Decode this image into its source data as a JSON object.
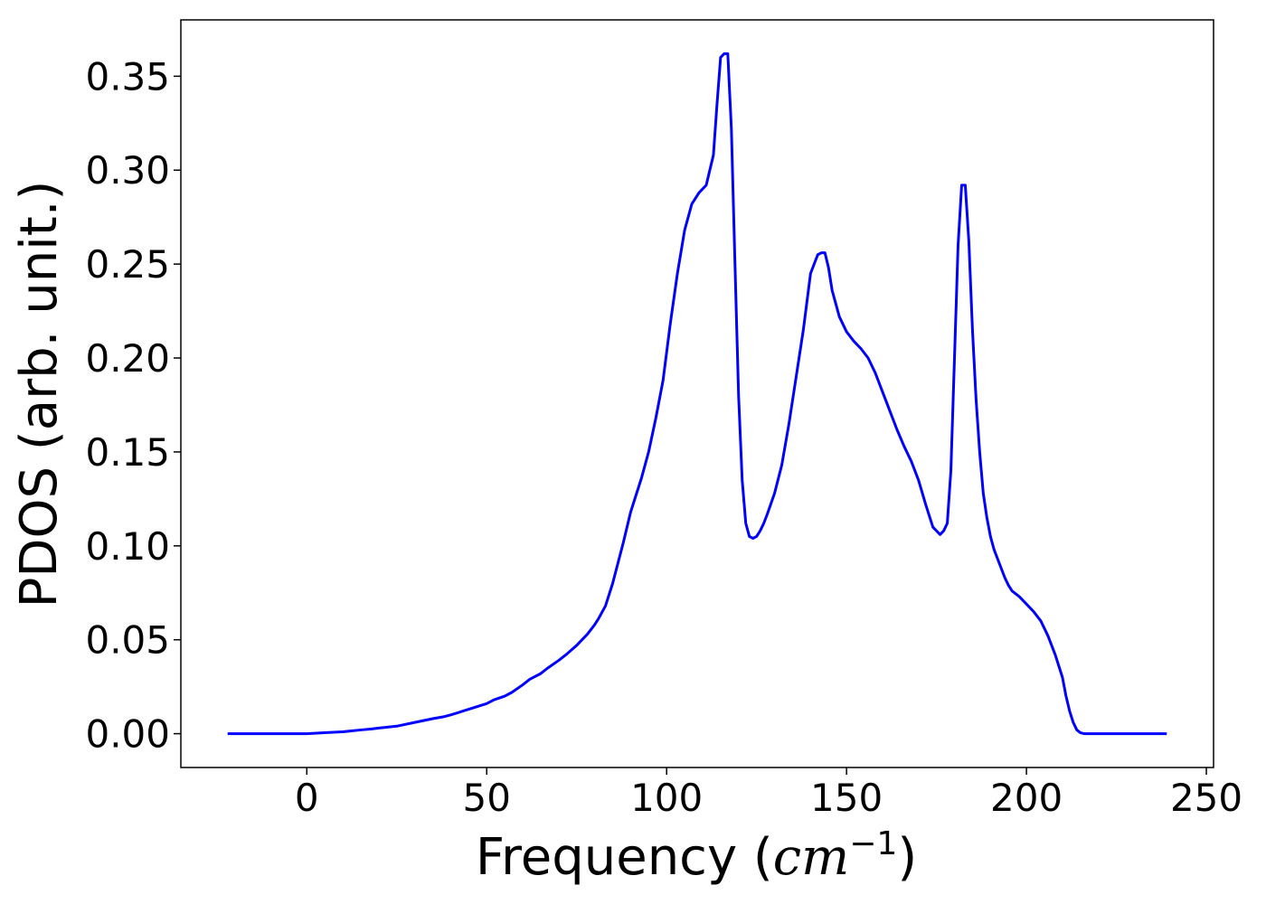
{
  "chart_data": {
    "type": "line",
    "title": "",
    "xlabel_text": "Frequency (",
    "xlabel_math": "cm",
    "xlabel_sup": "−1",
    "xlabel_close": ")",
    "ylabel": "PDOS (arb. unit.)",
    "xlim": [
      -35,
      252
    ],
    "ylim": [
      -0.018,
      0.38
    ],
    "xticks": [
      0,
      50,
      100,
      150,
      200,
      250
    ],
    "xtick_labels": [
      "0",
      "50",
      "100",
      "150",
      "200",
      "250"
    ],
    "yticks": [
      0.0,
      0.05,
      0.1,
      0.15,
      0.2,
      0.25,
      0.3,
      0.35
    ],
    "ytick_labels": [
      "0.00",
      "0.05",
      "0.10",
      "0.15",
      "0.20",
      "0.25",
      "0.30",
      "0.35"
    ],
    "grid": false,
    "legend": "none",
    "series": [
      {
        "color": "#0000ff",
        "x": [
          -22,
          0,
          5,
          10,
          15,
          18,
          20,
          25,
          30,
          35,
          38,
          40,
          45,
          50,
          52,
          55,
          57,
          60,
          62,
          65,
          67,
          70,
          72,
          75,
          78,
          80,
          81,
          83,
          85,
          88,
          90,
          93,
          95,
          97,
          99,
          101,
          103,
          105,
          107,
          109,
          111,
          113,
          114,
          115,
          116,
          117,
          118,
          119,
          120,
          121,
          122,
          123,
          124,
          125,
          126,
          127,
          128,
          130,
          132,
          134,
          136,
          138,
          140,
          142,
          143,
          144,
          145,
          146,
          148,
          150,
          152,
          154,
          156,
          158,
          160,
          162,
          164,
          166,
          168,
          170,
          172,
          174,
          176,
          177,
          178,
          179,
          180,
          181,
          182,
          183,
          184,
          185,
          186,
          187,
          188,
          189,
          190,
          191,
          192,
          193,
          194,
          195,
          196,
          198,
          200,
          202,
          204,
          206,
          208,
          210,
          211,
          212,
          213,
          214,
          215,
          216,
          217,
          218,
          219,
          220,
          221,
          222,
          224,
          230,
          239
        ],
        "y": [
          0,
          0,
          0.0005,
          0.001,
          0.002,
          0.0025,
          0.003,
          0.004,
          0.006,
          0.008,
          0.009,
          0.01,
          0.013,
          0.016,
          0.018,
          0.02,
          0.022,
          0.026,
          0.029,
          0.032,
          0.035,
          0.039,
          0.042,
          0.047,
          0.053,
          0.058,
          0.061,
          0.068,
          0.08,
          0.102,
          0.118,
          0.136,
          0.15,
          0.168,
          0.188,
          0.218,
          0.245,
          0.268,
          0.282,
          0.288,
          0.292,
          0.308,
          0.335,
          0.36,
          0.362,
          0.362,
          0.322,
          0.25,
          0.18,
          0.135,
          0.112,
          0.105,
          0.104,
          0.105,
          0.108,
          0.112,
          0.117,
          0.128,
          0.143,
          0.165,
          0.19,
          0.215,
          0.245,
          0.255,
          0.256,
          0.256,
          0.248,
          0.236,
          0.222,
          0.214,
          0.209,
          0.205,
          0.2,
          0.192,
          0.182,
          0.172,
          0.162,
          0.153,
          0.145,
          0.135,
          0.122,
          0.11,
          0.106,
          0.108,
          0.112,
          0.14,
          0.2,
          0.26,
          0.292,
          0.292,
          0.262,
          0.215,
          0.178,
          0.15,
          0.128,
          0.115,
          0.105,
          0.098,
          0.093,
          0.088,
          0.083,
          0.079,
          0.076,
          0.073,
          0.069,
          0.065,
          0.06,
          0.052,
          0.042,
          0.03,
          0.02,
          0.012,
          0.006,
          0.002,
          0.0005,
          0,
          0,
          0,
          0,
          0,
          0,
          0,
          0,
          0,
          0
        ]
      }
    ]
  }
}
